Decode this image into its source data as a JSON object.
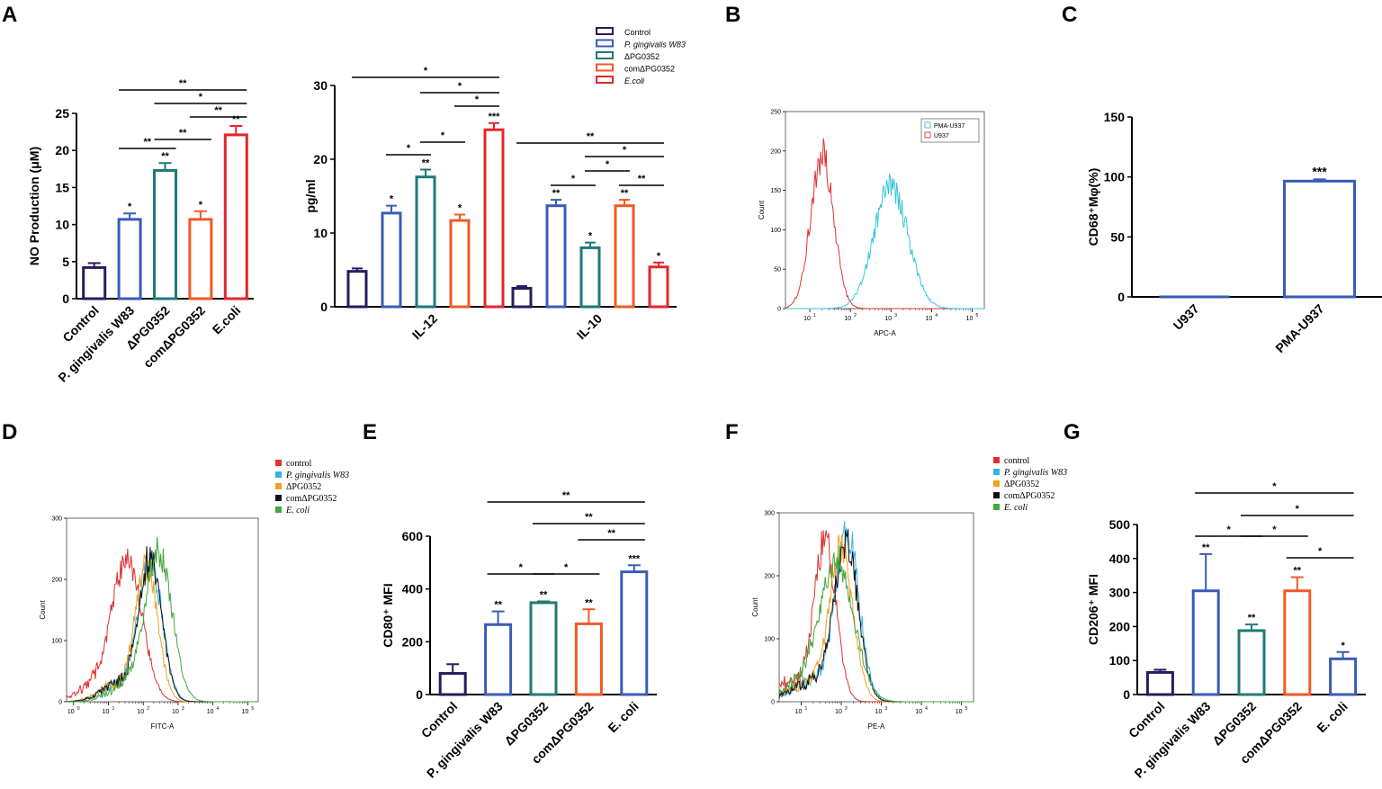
{
  "colors": {
    "Control": "#2b1b5e",
    "P. gingivalis W83": "#3a5cb5",
    "ΔPG0352": "#1f7a78",
    "comΔPG0352": "#f05a28",
    "E.coli": "#e3262e"
  },
  "flow_colors": {
    "control": "#e03030",
    "P. gingivalis W83": "#35b5e0",
    "ΔPG0352": "#f0a020",
    "comΔPG0352": "#111111",
    "E. coli": "#40a840"
  },
  "chart_data": [
    {
      "id": "A1",
      "panel": "A",
      "type": "bar",
      "ylabel": "NO Production (μM)",
      "categories": [
        "Control",
        "P. gingivalis W83",
        "ΔPG0352",
        "comΔPG0352",
        "E.coli"
      ],
      "values": [
        4.2,
        10.7,
        17.3,
        10.7,
        22.1
      ],
      "errors": [
        0.6,
        0.8,
        1.0,
        1.1,
        1.2
      ],
      "bar_marks": [
        "",
        "*",
        "**",
        "*",
        "**"
      ],
      "ylim": [
        0,
        25
      ],
      "yticks": [
        0,
        5,
        10,
        15,
        20,
        25
      ],
      "comparisons": [
        {
          "a": 1,
          "b": 4,
          "label": "**"
        },
        {
          "a": 2,
          "b": 4,
          "label": "*"
        },
        {
          "a": 3,
          "b": 4,
          "label": "**"
        },
        {
          "a": 1,
          "b": 2,
          "label": "**"
        },
        {
          "a": 2,
          "b": 3,
          "label": "**"
        }
      ]
    },
    {
      "id": "A2",
      "panel": "A",
      "type": "bar",
      "ylabel": "pg/ml",
      "groups": [
        "IL-12",
        "IL-10"
      ],
      "series": [
        {
          "name": "Control",
          "values": [
            4.8,
            2.5
          ],
          "errors": [
            0.4,
            0.3
          ],
          "marks": [
            "",
            ""
          ]
        },
        {
          "name": "P. gingivalis W83",
          "values": [
            12.7,
            13.7
          ],
          "errors": [
            1.0,
            0.8
          ],
          "marks": [
            "*",
            "**"
          ]
        },
        {
          "name": "ΔPG0352",
          "values": [
            17.6,
            8.0
          ],
          "errors": [
            1.0,
            0.7
          ],
          "marks": [
            "**",
            "*"
          ]
        },
        {
          "name": "comΔPG0352",
          "values": [
            11.7,
            13.7
          ],
          "errors": [
            0.8,
            0.8
          ],
          "marks": [
            "*",
            "**"
          ]
        },
        {
          "name": "E.coli",
          "values": [
            24.0,
            5.4
          ],
          "errors": [
            0.9,
            0.6
          ],
          "marks": [
            "***",
            "*"
          ]
        }
      ],
      "ylim": [
        0,
        30
      ],
      "yticks": [
        0,
        10,
        20,
        30
      ],
      "comparisons": [
        {
          "g": 0,
          "a": 0,
          "b": 4,
          "label": "*"
        },
        {
          "g": 0,
          "a": 2,
          "b": 4,
          "label": "*"
        },
        {
          "g": 0,
          "a": 3,
          "b": 4,
          "label": "*"
        },
        {
          "g": 0,
          "a": 1,
          "b": 2,
          "label": "*"
        },
        {
          "g": 0,
          "a": 2,
          "b": 3,
          "label": "*"
        },
        {
          "g": 1,
          "a": 0,
          "b": 4,
          "label": "**"
        },
        {
          "g": 1,
          "a": 2,
          "b": 4,
          "label": "*"
        },
        {
          "g": 1,
          "a": 2,
          "b": 3,
          "label": "*"
        },
        {
          "g": 1,
          "a": 1,
          "b": 2,
          "label": "*"
        },
        {
          "g": 1,
          "a": 3,
          "b": 4,
          "label": "**"
        }
      ],
      "legend": [
        "Control",
        "P. gingivalis W83",
        "ΔPG0352",
        "comΔPG0352",
        "E.coli"
      ]
    },
    {
      "id": "B",
      "panel": "B",
      "type": "line",
      "xlabel": "APC-A",
      "ylabel": "Count",
      "ylim": [
        0,
        250
      ],
      "yticks": [
        0,
        50,
        100,
        150,
        200,
        250
      ],
      "xticks": [
        "10",
        "10",
        "10",
        "10",
        "10"
      ],
      "xtick_exp": [
        "1",
        "2",
        "3",
        "4",
        "5"
      ],
      "legend": [
        "PMA-U937",
        "U937"
      ],
      "series": [
        {
          "name": "U937",
          "color": "#e03030",
          "peak_log": 1.3,
          "peak": 195,
          "width": 0.28
        },
        {
          "name": "PMA-U937",
          "color": "#35c5e0",
          "peak_log": 3.0,
          "peak": 155,
          "width": 0.42
        }
      ]
    },
    {
      "id": "C",
      "panel": "C",
      "type": "bar",
      "ylabel": "CD68⁺Mφ(%)",
      "categories": [
        "U937",
        "PMA-U937"
      ],
      "values": [
        0,
        96.5
      ],
      "errors": [
        0,
        1.5
      ],
      "bar_marks": [
        "",
        "***"
      ],
      "ylim": [
        0,
        150
      ],
      "yticks": [
        0,
        50,
        100,
        150
      ]
    },
    {
      "id": "D",
      "panel": "D",
      "type": "line",
      "xlabel": "FITC-A",
      "ylabel": "Count",
      "ylim": [
        0,
        300
      ],
      "yticks": [
        0,
        100,
        200,
        300
      ],
      "xticks": [
        "10",
        "10",
        "10",
        "10",
        "10",
        "10"
      ],
      "xtick_exp": [
        "0",
        "1",
        "2",
        "3",
        "4",
        "5"
      ],
      "legend": [
        "control",
        "P. gingivalis W83",
        "ΔPG0352",
        "comΔPG0352",
        "E. coli"
      ],
      "series": [
        {
          "name": "control",
          "peak_log": 1.55,
          "peak": 232,
          "width": 0.42
        },
        {
          "name": "P. gingivalis W83",
          "peak_log": 2.2,
          "peak": 225,
          "width": 0.34
        },
        {
          "name": "ΔPG0352",
          "peak_log": 2.1,
          "peak": 215,
          "width": 0.32
        },
        {
          "name": "comΔPG0352",
          "peak_log": 2.2,
          "peak": 228,
          "width": 0.33
        },
        {
          "name": "E. coli",
          "peak_log": 2.45,
          "peak": 242,
          "width": 0.38
        }
      ]
    },
    {
      "id": "E",
      "panel": "E",
      "type": "bar",
      "ylabel": "CD80⁺ MFI",
      "categories": [
        "Control",
        "P. gingivalis W83",
        "ΔPG0352",
        "comΔPG0352",
        "E. coli"
      ],
      "values": [
        80,
        265,
        348,
        268,
        465
      ],
      "errors": [
        35,
        50,
        5,
        55,
        25
      ],
      "bar_marks": [
        "",
        "**",
        "**",
        "**",
        "***"
      ],
      "ylim": [
        0,
        600
      ],
      "yticks": [
        0,
        200,
        400,
        600
      ],
      "comparisons": [
        {
          "a": 1,
          "b": 4,
          "label": "**"
        },
        {
          "a": 2,
          "b": 4,
          "label": "**"
        },
        {
          "a": 3,
          "b": 4,
          "label": "**"
        },
        {
          "a": 1,
          "b": 2,
          "label": "*"
        },
        {
          "a": 2,
          "b": 3,
          "label": "*"
        }
      ]
    },
    {
      "id": "F",
      "panel": "F",
      "type": "line",
      "xlabel": "PE-A",
      "ylabel": "Count",
      "ylim": [
        0,
        300
      ],
      "yticks": [
        0,
        100,
        200,
        300
      ],
      "xticks": [
        "10",
        "10",
        "10",
        "10",
        "10"
      ],
      "xtick_exp": [
        "1",
        "2",
        "3",
        "4",
        "5"
      ],
      "legend": [
        "control",
        "P. gingivalis W83",
        "ΔPG0352",
        "comΔPG0352",
        "E. coli"
      ],
      "series": [
        {
          "name": "control",
          "peak_log": 1.6,
          "peak": 252,
          "width": 0.27
        },
        {
          "name": "P. gingivalis W83",
          "peak_log": 2.15,
          "peak": 262,
          "width": 0.3
        },
        {
          "name": "ΔPG0352",
          "peak_log": 2.0,
          "peak": 235,
          "width": 0.3
        },
        {
          "name": "comΔPG0352",
          "peak_log": 2.12,
          "peak": 252,
          "width": 0.3
        },
        {
          "name": "E. coli",
          "peak_log": 1.9,
          "peak": 222,
          "width": 0.42
        }
      ]
    },
    {
      "id": "G",
      "panel": "G",
      "type": "bar",
      "ylabel": "CD206⁺ MFI",
      "categories": [
        "Control",
        "P. gingivalis W83",
        "ΔPG0352",
        "comΔPG0352",
        "E. coli"
      ],
      "values": [
        65,
        305,
        188,
        305,
        105
      ],
      "errors": [
        8,
        108,
        18,
        40,
        20
      ],
      "bar_marks": [
        "",
        "**",
        "**",
        "**",
        "*"
      ],
      "ylim": [
        0,
        500
      ],
      "yticks": [
        0,
        100,
        200,
        300,
        400,
        500
      ],
      "comparisons": [
        {
          "a": 1,
          "b": 4,
          "label": "*"
        },
        {
          "a": 2,
          "b": 4,
          "label": "*"
        },
        {
          "a": 1,
          "b": 2,
          "label": "*"
        },
        {
          "a": 2,
          "b": 3,
          "label": "*"
        },
        {
          "a": 3,
          "b": 4,
          "label": "*"
        }
      ]
    }
  ],
  "panel_labels": [
    "A",
    "B",
    "C",
    "D",
    "E",
    "F",
    "G"
  ]
}
